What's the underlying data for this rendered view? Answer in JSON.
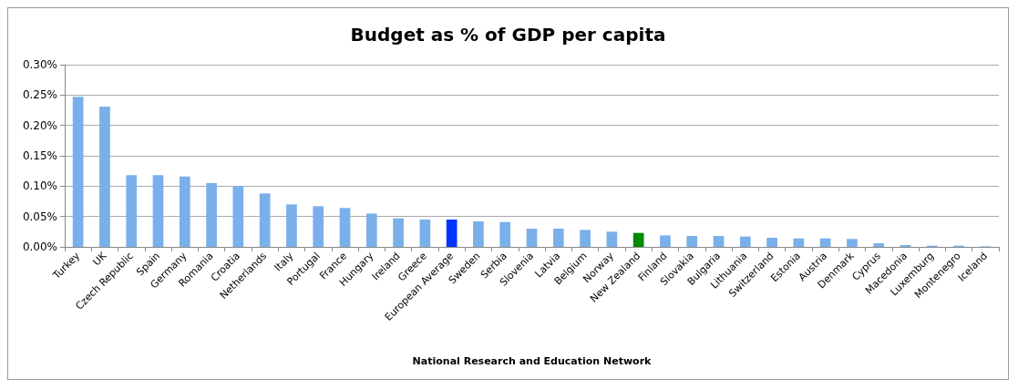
{
  "chart_data": {
    "type": "bar",
    "title": "Budget as % of GDP per capita",
    "xlabel": "National Research and Education Network",
    "categories": [
      "Turkey",
      "UK",
      "Czech Republic",
      "Spain",
      "Germany",
      "Romania",
      "Croatia",
      "Netherlands",
      "Italy",
      "Portugal",
      "France",
      "Hungary",
      "Ireland",
      "Greece",
      "European Average",
      "Sweden",
      "Serbia",
      "Slovenia",
      "Latvia",
      "Belgium",
      "Norway",
      "New Zealand",
      "Finland",
      "Slovakia",
      "Bulgaria",
      "Lithuania",
      "Switzerland",
      "Estonia",
      "Austria",
      "Denmark",
      "Cyprus",
      "Macedonia",
      "Luxemburg",
      "Montenegro",
      "Iceland"
    ],
    "values": [
      0.247,
      0.231,
      0.118,
      0.118,
      0.116,
      0.105,
      0.1,
      0.088,
      0.07,
      0.067,
      0.064,
      0.055,
      0.047,
      0.045,
      0.045,
      0.042,
      0.041,
      0.03,
      0.03,
      0.028,
      0.025,
      0.023,
      0.019,
      0.018,
      0.018,
      0.017,
      0.015,
      0.014,
      0.014,
      0.013,
      0.006,
      0.003,
      0.002,
      0.002,
      0.001
    ],
    "colors": [
      "#7ab0ea",
      "#7ab0ea",
      "#7ab0ea",
      "#7ab0ea",
      "#7ab0ea",
      "#7ab0ea",
      "#7ab0ea",
      "#7ab0ea",
      "#7ab0ea",
      "#7ab0ea",
      "#7ab0ea",
      "#7ab0ea",
      "#7ab0ea",
      "#7ab0ea",
      "#0033ff",
      "#7ab0ea",
      "#7ab0ea",
      "#7ab0ea",
      "#7ab0ea",
      "#7ab0ea",
      "#7ab0ea",
      "#008a00",
      "#7ab0ea",
      "#7ab0ea",
      "#7ab0ea",
      "#7ab0ea",
      "#7ab0ea",
      "#7ab0ea",
      "#7ab0ea",
      "#7ab0ea",
      "#7ab0ea",
      "#7ab0ea",
      "#7ab0ea",
      "#7ab0ea",
      "#7ab0ea"
    ],
    "ylim": [
      0,
      0.3
    ],
    "yticks": [
      {
        "value": 0,
        "label": "0.00%"
      },
      {
        "value": 0.05,
        "label": "0.05%"
      },
      {
        "value": 0.1,
        "label": "0.10%"
      },
      {
        "value": 0.15,
        "label": "0.15%"
      },
      {
        "value": 0.2,
        "label": "0.20%"
      },
      {
        "value": 0.25,
        "label": "0.25%"
      },
      {
        "value": 0.3,
        "label": "0.30%"
      }
    ],
    "grid": "y"
  }
}
